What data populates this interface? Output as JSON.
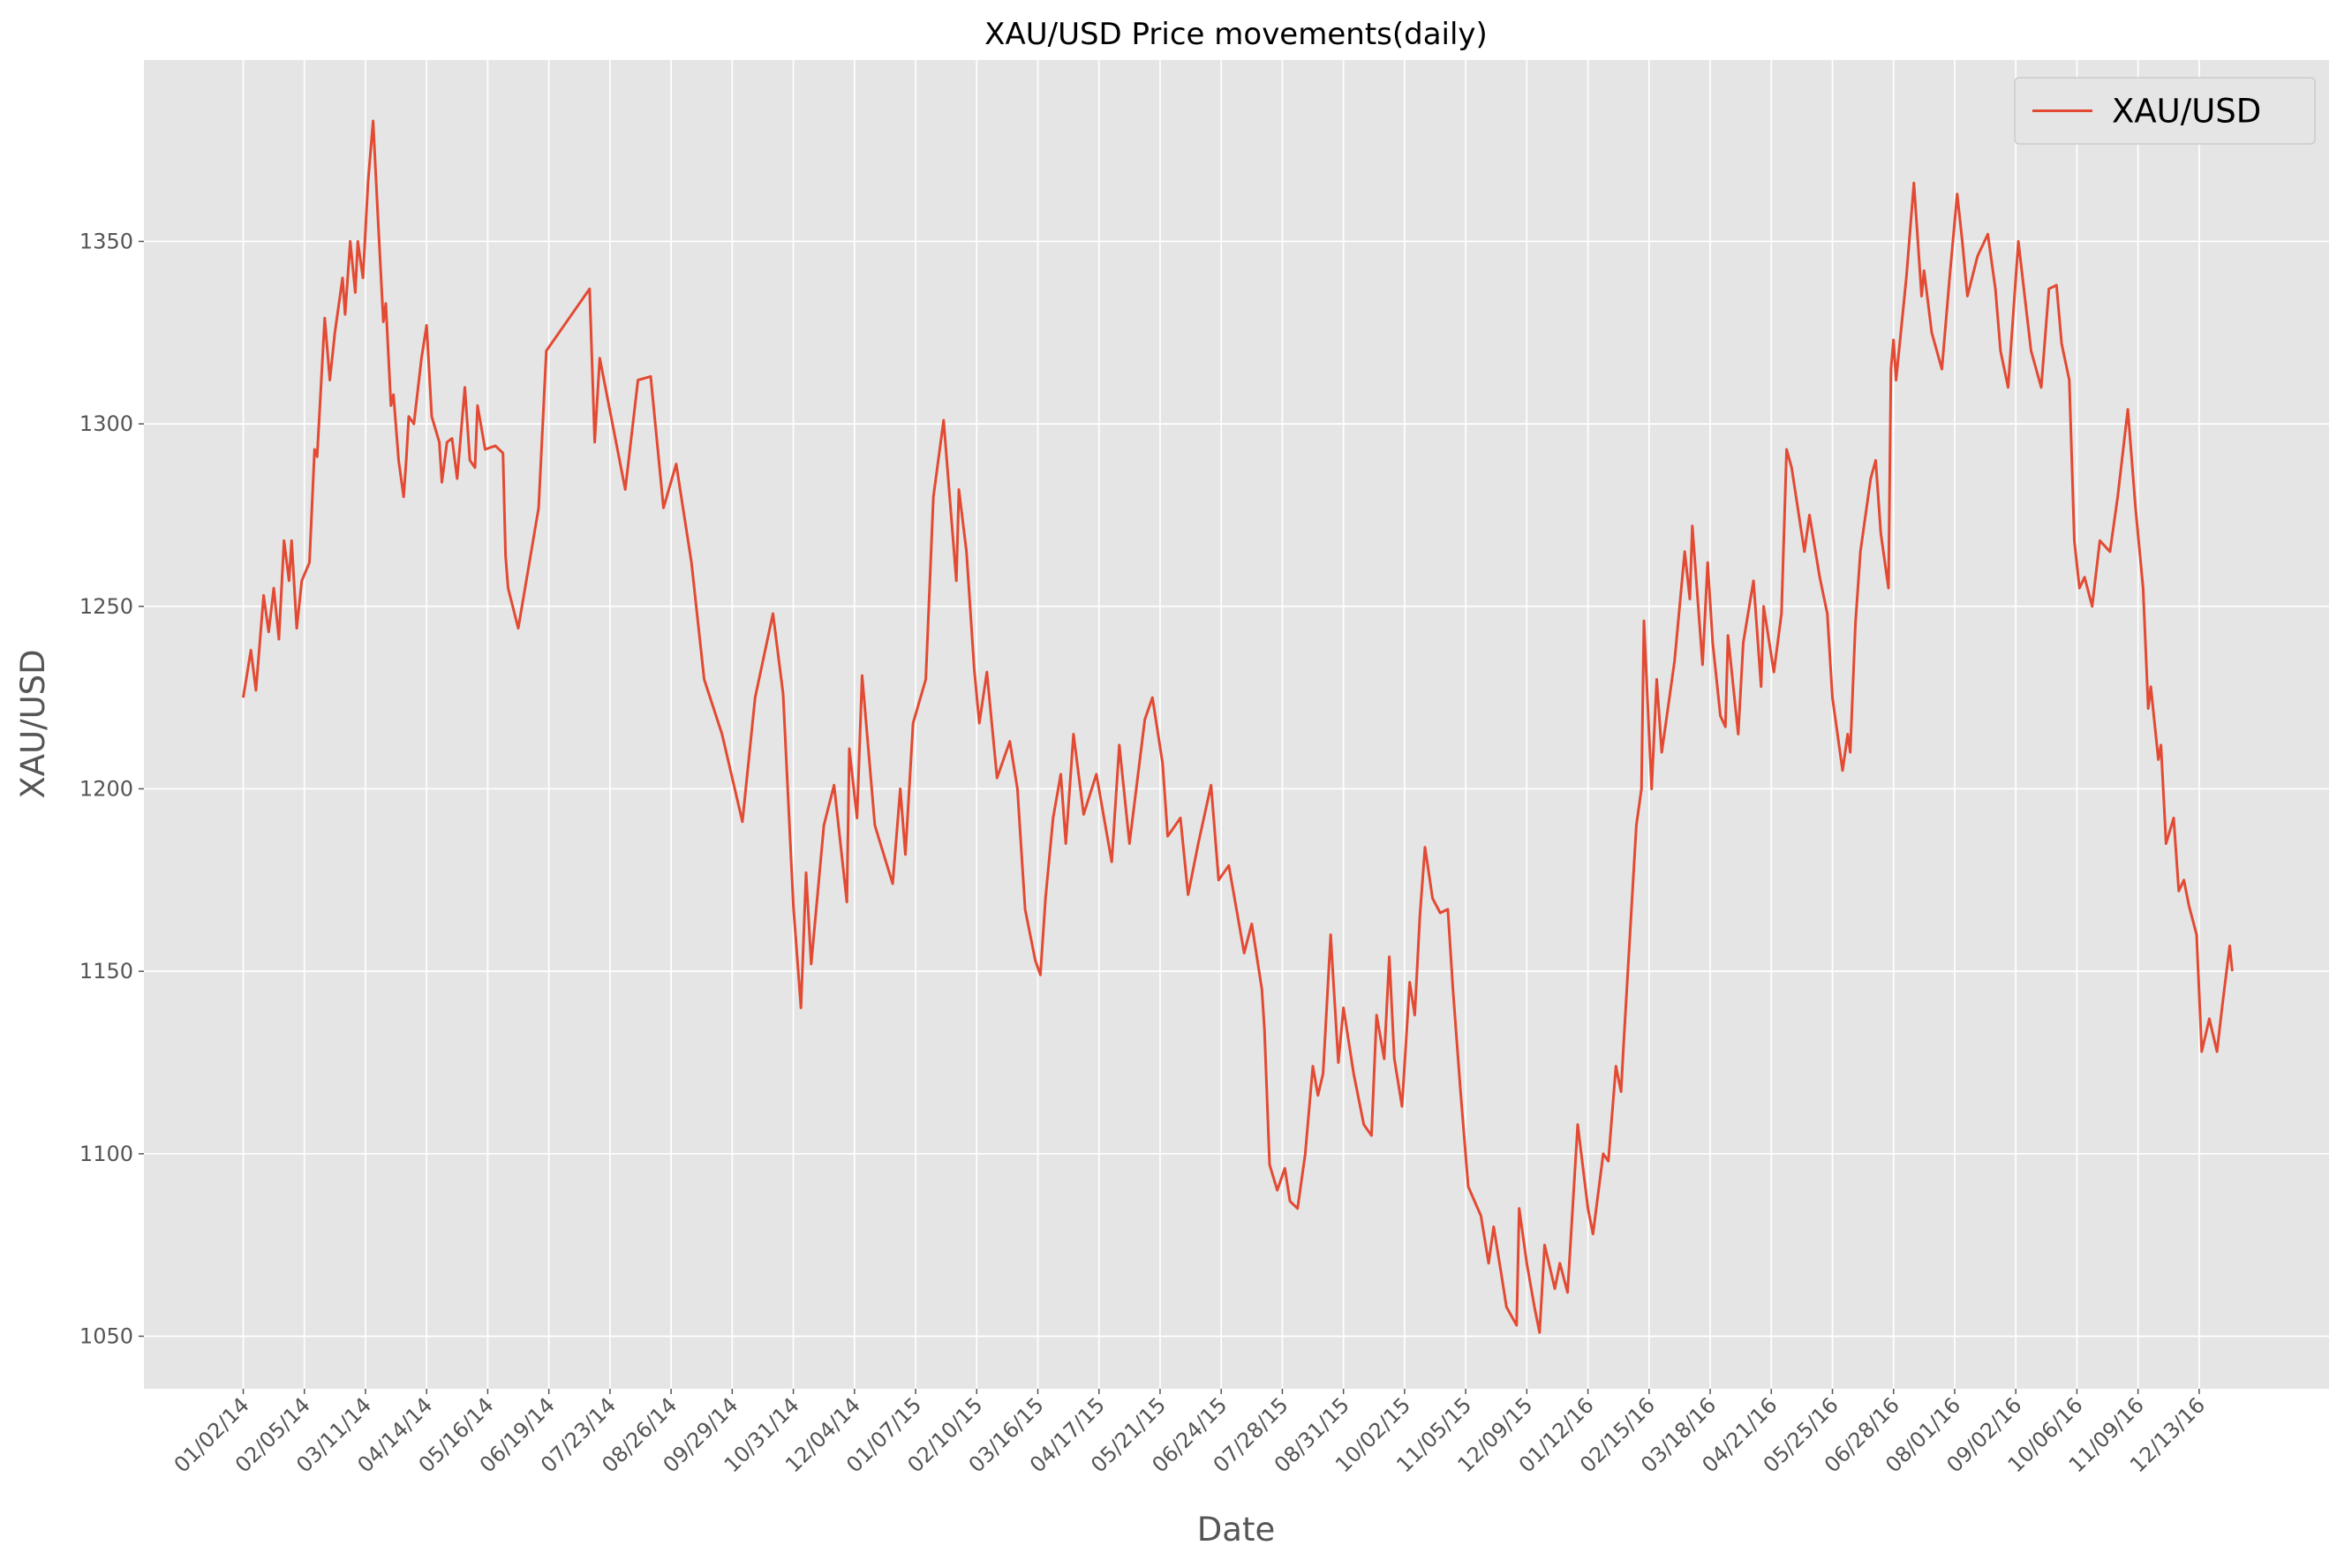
{
  "chart_data": {
    "type": "line",
    "title": "XAU/USD Price movements(daily)",
    "x_label": "Date",
    "y_label": "XAU/USD",
    "legend": "upper right",
    "grid": true,
    "xlim": [
      -39,
      819
    ],
    "ylim": [
      1035.6,
      1399.7
    ],
    "yticks": [
      1050,
      1100,
      1150,
      1200,
      1250,
      1300,
      1350
    ],
    "xticks": [
      {
        "value": 0,
        "label": "01/02/14"
      },
      {
        "value": 24,
        "label": "02/05/14"
      },
      {
        "value": 48,
        "label": "03/11/14"
      },
      {
        "value": 72,
        "label": "04/14/14"
      },
      {
        "value": 96,
        "label": "05/16/14"
      },
      {
        "value": 120,
        "label": "06/19/14"
      },
      {
        "value": 144,
        "label": "07/23/14"
      },
      {
        "value": 168,
        "label": "08/26/14"
      },
      {
        "value": 192,
        "label": "09/29/14"
      },
      {
        "value": 216,
        "label": "10/31/14"
      },
      {
        "value": 240,
        "label": "12/04/14"
      },
      {
        "value": 264,
        "label": "01/07/15"
      },
      {
        "value": 288,
        "label": "02/10/15"
      },
      {
        "value": 312,
        "label": "03/16/15"
      },
      {
        "value": 336,
        "label": "04/17/15"
      },
      {
        "value": 360,
        "label": "05/21/15"
      },
      {
        "value": 384,
        "label": "06/24/15"
      },
      {
        "value": 408,
        "label": "07/28/15"
      },
      {
        "value": 432,
        "label": "08/31/15"
      },
      {
        "value": 456,
        "label": "10/02/15"
      },
      {
        "value": 480,
        "label": "11/05/15"
      },
      {
        "value": 504,
        "label": "12/09/15"
      },
      {
        "value": 528,
        "label": "01/12/16"
      },
      {
        "value": 552,
        "label": "02/15/16"
      },
      {
        "value": 576,
        "label": "03/18/16"
      },
      {
        "value": 600,
        "label": "04/21/16"
      },
      {
        "value": 624,
        "label": "05/25/16"
      },
      {
        "value": 648,
        "label": "06/28/16"
      },
      {
        "value": 672,
        "label": "08/01/16"
      },
      {
        "value": 696,
        "label": "09/02/16"
      },
      {
        "value": 720,
        "label": "10/06/16"
      },
      {
        "value": 744,
        "label": "11/09/16"
      },
      {
        "value": 768,
        "label": "12/13/16"
      }
    ],
    "x": [
      0,
      3,
      5,
      8,
      10,
      12,
      14,
      16,
      18,
      19,
      21,
      23,
      26,
      28,
      29,
      32,
      34,
      36,
      39,
      40,
      42,
      44,
      45,
      47,
      49,
      51,
      53,
      55,
      56,
      58,
      59,
      61,
      63,
      64,
      65,
      67,
      70,
      72,
      74,
      77,
      78,
      80,
      82,
      84,
      87,
      89,
      91,
      92,
      95,
      99,
      102,
      103,
      104,
      108,
      116,
      119,
      136,
      138,
      140,
      150,
      155,
      160,
      165,
      170,
      176,
      181,
      188,
      196,
      201,
      208,
      212,
      216,
      219,
      221,
      223,
      228,
      232,
      237,
      238,
      241,
      243,
      248,
      255,
      258,
      260,
      263,
      268,
      271,
      275,
      280,
      281,
      284,
      287,
      289,
      292,
      296,
      301,
      304,
      307,
      311,
      313,
      315,
      318,
      321,
      323,
      326,
      330,
      335,
      341,
      344,
      348,
      354,
      357,
      361,
      363,
      368,
      371,
      375,
      380,
      383,
      387,
      393,
      396,
      400,
      401,
      403,
      406,
      409,
      411,
      414,
      417,
      420,
      422,
      424,
      427,
      428,
      430,
      432,
      436,
      440,
      443,
      445,
      448,
      450,
      452,
      455,
      458,
      460,
      462,
      464,
      467,
      470,
      473,
      475,
      478,
      481,
      486,
      489,
      491,
      494,
      496,
      500,
      501,
      504,
      507,
      509,
      511,
      515,
      517,
      520,
      524,
      528,
      530,
      534,
      536,
      539,
      541,
      542,
      547,
      549,
      550,
      553,
      555,
      557,
      562,
      566,
      568,
      569,
      573,
      575,
      577,
      580,
      582,
      583,
      587,
      589,
      593,
      596,
      597,
      601,
      604,
      606,
      608,
      613,
      615,
      619,
      622,
      624,
      628,
      630,
      631,
      633,
      635,
      639,
      641,
      643,
      646,
      647,
      648,
      649,
      653,
      656,
      659,
      660,
      663,
      667,
      670,
      673,
      675,
      677,
      681,
      685,
      688,
      690,
      693,
      697,
      702,
      706,
      709,
      712,
      714,
      717,
      719,
      721,
      723,
      726,
      729,
      733,
      736,
      740,
      743,
      746,
      748,
      749,
      752,
      753,
      755,
      758,
      760,
      762,
      764,
      767,
      769,
      772,
      775,
      777,
      780,
      781
    ],
    "series": [
      {
        "name": "XAU/USD",
        "color": "#E24A33",
        "values": [
          1225,
          1238,
          1227,
          1253,
          1243,
          1255,
          1241,
          1268,
          1257,
          1268,
          1244,
          1257,
          1262,
          1293,
          1291,
          1329,
          1312,
          1325,
          1340,
          1330,
          1350,
          1336,
          1350,
          1340,
          1366,
          1383,
          1355,
          1328,
          1333,
          1305,
          1308,
          1290,
          1280,
          1290,
          1302,
          1300,
          1318,
          1327,
          1302,
          1295,
          1284,
          1295,
          1296,
          1285,
          1310,
          1290,
          1288,
          1305,
          1293,
          1294,
          1292,
          1264,
          1255,
          1244,
          1277,
          1320,
          1337,
          1295,
          1318,
          1282,
          1312,
          1313,
          1277,
          1289,
          1262,
          1230,
          1215,
          1191,
          1225,
          1248,
          1226,
          1168,
          1140,
          1177,
          1152,
          1190,
          1201,
          1169,
          1211,
          1192,
          1231,
          1190,
          1174,
          1200,
          1182,
          1218,
          1230,
          1280,
          1301,
          1257,
          1282,
          1265,
          1233,
          1218,
          1232,
          1203,
          1213,
          1200,
          1167,
          1153,
          1149,
          1170,
          1192,
          1204,
          1185,
          1215,
          1193,
          1204,
          1180,
          1212,
          1185,
          1219,
          1225,
          1207,
          1187,
          1192,
          1171,
          1185,
          1201,
          1175,
          1179,
          1155,
          1163,
          1145,
          1134,
          1097,
          1090,
          1096,
          1087,
          1085,
          1100,
          1124,
          1116,
          1122,
          1160,
          1148,
          1125,
          1140,
          1122,
          1108,
          1105,
          1138,
          1126,
          1154,
          1126,
          1113,
          1147,
          1138,
          1165,
          1184,
          1170,
          1166,
          1167,
          1145,
          1117,
          1091,
          1083,
          1070,
          1080,
          1067,
          1058,
          1053,
          1085,
          1070,
          1058,
          1051,
          1075,
          1063,
          1070,
          1062,
          1108,
          1085,
          1078,
          1100,
          1098,
          1124,
          1117,
          1130,
          1190,
          1200,
          1246,
          1200,
          1230,
          1210,
          1235,
          1265,
          1252,
          1272,
          1234,
          1262,
          1240,
          1220,
          1217,
          1242,
          1215,
          1240,
          1257,
          1228,
          1250,
          1232,
          1248,
          1293,
          1288,
          1265,
          1275,
          1258,
          1248,
          1225,
          1205,
          1215,
          1210,
          1245,
          1265,
          1285,
          1290,
          1270,
          1255,
          1315,
          1323,
          1312,
          1340,
          1366,
          1335,
          1342,
          1325,
          1315,
          1340,
          1363,
          1350,
          1335,
          1346,
          1352,
          1337,
          1320,
          1310,
          1350,
          1320,
          1310,
          1337,
          1338,
          1322,
          1312,
          1268,
          1255,
          1258,
          1250,
          1268,
          1265,
          1280,
          1304,
          1277,
          1255,
          1222,
          1228,
          1208,
          1212,
          1185,
          1192,
          1172,
          1175,
          1168,
          1160,
          1128,
          1137,
          1128,
          1140,
          1157,
          1150
        ]
      }
    ]
  }
}
